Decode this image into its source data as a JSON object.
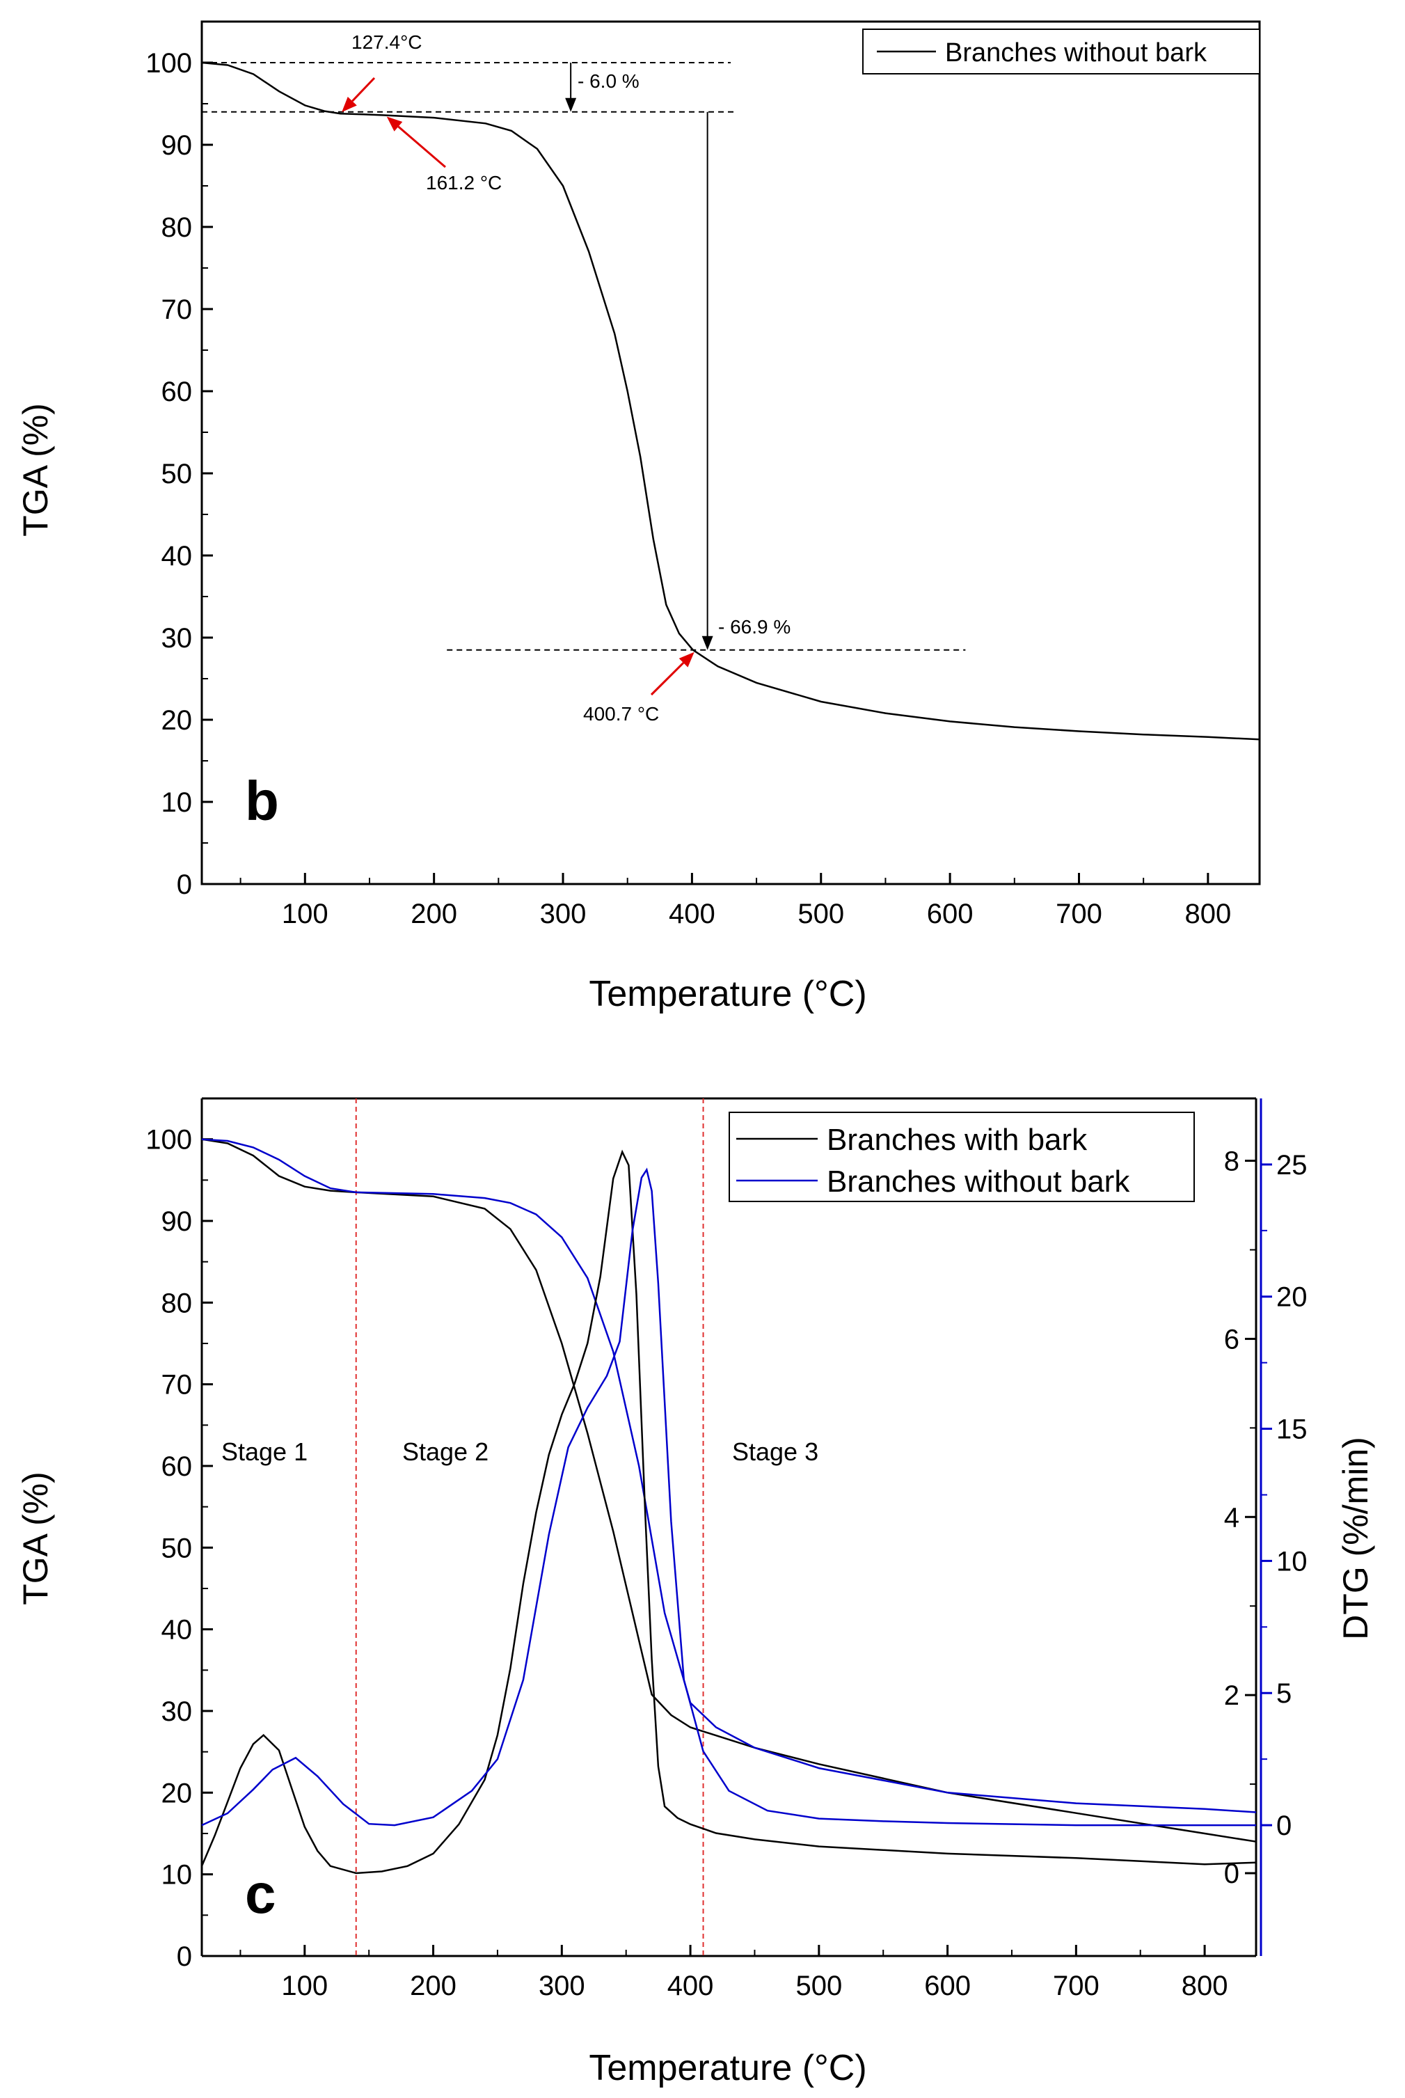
{
  "colors": {
    "black": "#000000",
    "blue": "#0000cc",
    "red": "#e00000",
    "stage_line": "#e03030"
  },
  "chart_data": [
    {
      "id": "b",
      "type": "line",
      "panel_label": "b",
      "xlabel": "Temperature (°C)",
      "ylabel": "TGA (%)",
      "xlim": [
        20,
        840
      ],
      "ylim": [
        0,
        105
      ],
      "x_ticks": [
        100,
        200,
        300,
        400,
        500,
        600,
        700,
        800
      ],
      "y_ticks": [
        0,
        10,
        20,
        30,
        40,
        50,
        60,
        70,
        80,
        90,
        100
      ],
      "legend": [
        "Branches without bark"
      ],
      "series": [
        {
          "name": "Branches without bark",
          "x": [
            20,
            40,
            60,
            80,
            100,
            115,
            127.4,
            145,
            161.2,
            200,
            240,
            260,
            280,
            300,
            320,
            340,
            350,
            360,
            370,
            380,
            390,
            400.7,
            420,
            450,
            500,
            550,
            600,
            650,
            700,
            750,
            800,
            840
          ],
          "y": [
            100,
            99.7,
            98.6,
            96.5,
            94.8,
            94.1,
            93.8,
            93.7,
            93.6,
            93.3,
            92.6,
            91.7,
            89.5,
            85,
            77,
            67,
            60,
            52,
            42,
            34,
            30.5,
            28.5,
            26.5,
            24.5,
            22.2,
            20.8,
            19.8,
            19.1,
            18.6,
            18.2,
            17.9,
            17.6
          ]
        }
      ],
      "annotations": [
        {
          "label": "127.4°C",
          "x": 127.4,
          "y": 93.8
        },
        {
          "label": "161.2 °C",
          "x": 161.2,
          "y": 93.6
        },
        {
          "label": "400.7 °C",
          "x": 400.7,
          "y": 28.5
        },
        {
          "label": "- 6.0 %",
          "from": 100,
          "to": 94
        },
        {
          "label": "- 66.9 %",
          "from": 94,
          "to": 28.5
        }
      ]
    },
    {
      "id": "c",
      "type": "line",
      "panel_label": "c",
      "xlabel": "Temperature (°C)",
      "ylabel": "TGA (%)",
      "y2label": "DTG (%/min)",
      "xlim": [
        20,
        840
      ],
      "ylim": [
        0,
        105
      ],
      "y2_black_lim": [
        -0.93,
        8.7
      ],
      "y2_blue_lim": [
        -4.95,
        27.5
      ],
      "x_ticks": [
        100,
        200,
        300,
        400,
        500,
        600,
        700,
        800
      ],
      "y_ticks": [
        0,
        10,
        20,
        30,
        40,
        50,
        60,
        70,
        80,
        90,
        100
      ],
      "y2_black_ticks": [
        0,
        2,
        4,
        6,
        8
      ],
      "y2_blue_ticks": [
        0,
        5,
        10,
        15,
        20,
        25
      ],
      "legend": [
        "Branches with bark",
        "Branches without bark"
      ],
      "stage_lines_x": [
        140,
        410
      ],
      "stages": [
        {
          "label": "Stage 1",
          "x": 80
        },
        {
          "label": "Stage 2",
          "x": 275
        },
        {
          "label": "Stage 3",
          "x": 445
        }
      ],
      "series": [
        {
          "name": "Branches with bark",
          "axis": "TGA",
          "x": [
            20,
            40,
            60,
            80,
            100,
            120,
            140,
            200,
            240,
            260,
            280,
            300,
            320,
            340,
            355,
            370,
            385,
            400,
            450,
            500,
            600,
            700,
            800,
            840
          ],
          "y": [
            100,
            99.5,
            98,
            95.5,
            94.2,
            93.7,
            93.5,
            93,
            91.5,
            89,
            84,
            75,
            64,
            52,
            42,
            32,
            29.5,
            28,
            25.5,
            23.5,
            20,
            17.5,
            15,
            14
          ]
        },
        {
          "name": "Branches without bark",
          "axis": "TGA",
          "x": [
            20,
            40,
            60,
            80,
            100,
            120,
            140,
            200,
            240,
            260,
            280,
            300,
            320,
            340,
            360,
            380,
            400,
            420,
            450,
            500,
            600,
            700,
            800,
            840
          ],
          "y": [
            100,
            99.8,
            99,
            97.5,
            95.5,
            94,
            93.5,
            93.3,
            92.8,
            92.2,
            90.8,
            88,
            83,
            74,
            60,
            42,
            31,
            28,
            25.5,
            23,
            20,
            18.7,
            18,
            17.6
          ]
        },
        {
          "name": "Branches with bark",
          "axis": "DTG",
          "x": [
            20,
            30,
            40,
            50,
            60,
            68,
            80,
            90,
            100,
            110,
            120,
            140,
            160,
            180,
            200,
            220,
            240,
            250,
            260,
            270,
            280,
            290,
            300,
            310,
            320,
            330,
            340,
            347,
            352,
            358,
            365,
            370,
            375,
            380,
            390,
            400,
            410,
            420,
            450,
            500,
            600,
            700,
            800,
            840
          ],
          "y": [
            0.08,
            0.42,
            0.8,
            1.18,
            1.45,
            1.55,
            1.38,
            0.95,
            0.52,
            0.25,
            0.08,
            0.0,
            0.02,
            0.08,
            0.22,
            0.55,
            1.05,
            1.55,
            2.3,
            3.25,
            4.05,
            4.7,
            5.15,
            5.5,
            5.95,
            6.7,
            7.8,
            8.1,
            7.95,
            6.5,
            4.0,
            2.4,
            1.2,
            0.75,
            0.62,
            0.55,
            0.5,
            0.45,
            0.38,
            0.3,
            0.22,
            0.17,
            0.1,
            0.12
          ]
        },
        {
          "name": "Branches without bark",
          "axis": "DTG",
          "x": [
            20,
            40,
            60,
            75,
            93,
            110,
            130,
            150,
            170,
            200,
            230,
            250,
            270,
            290,
            305,
            320,
            335,
            345,
            355,
            362,
            366,
            370,
            375,
            385,
            395,
            410,
            430,
            460,
            500,
            550,
            600,
            700,
            800,
            840
          ],
          "y": [
            0.0,
            0.45,
            1.35,
            2.1,
            2.55,
            1.85,
            0.8,
            0.05,
            0.0,
            0.3,
            1.3,
            2.5,
            5.5,
            11.0,
            14.3,
            15.8,
            17.0,
            18.3,
            22.5,
            24.5,
            24.8,
            24.0,
            20.5,
            11.5,
            5.5,
            2.8,
            1.3,
            0.55,
            0.25,
            0.15,
            0.08,
            0.0,
            0.0,
            0.0
          ]
        }
      ]
    }
  ]
}
